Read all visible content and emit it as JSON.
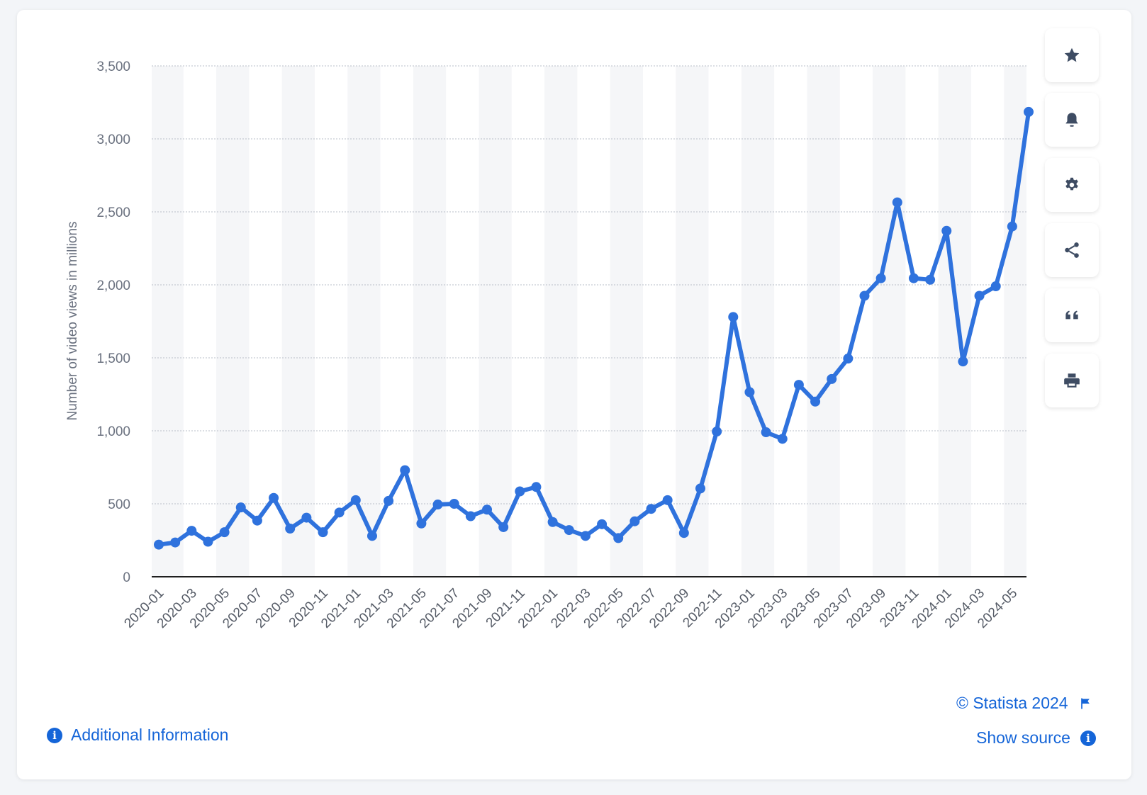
{
  "chart_data": {
    "type": "line",
    "ylabel": "Number of video views in millions",
    "xlabel": "",
    "ylim": [
      0,
      3500
    ],
    "yticks": [
      0,
      500,
      1000,
      1500,
      2000,
      2500,
      3000,
      3500
    ],
    "ytick_labels": [
      "0",
      "500",
      "1,000",
      "1,500",
      "2,000",
      "2,500",
      "3,000",
      "3,500"
    ],
    "xtick_labels": [
      "2020-01",
      "2020-03",
      "2020-05",
      "2020-07",
      "2020-09",
      "2020-11",
      "2021-01",
      "2021-03",
      "2021-05",
      "2021-07",
      "2021-09",
      "2021-11",
      "2022-01",
      "2022-03",
      "2022-05",
      "2022-07",
      "2022-09",
      "2022-11",
      "2023-01",
      "2023-03",
      "2023-05",
      "2023-07",
      "2023-09",
      "2023-11",
      "2024-01",
      "2024-03",
      "2024-05"
    ],
    "grid": true,
    "series": [
      {
        "color": "#2f72dd",
        "points": [
          [
            "2020-01",
            220
          ],
          [
            "2020-02",
            235
          ],
          [
            "2020-03",
            315
          ],
          [
            "2020-04",
            240
          ],
          [
            "2020-05",
            305
          ],
          [
            "2020-06",
            475
          ],
          [
            "2020-07",
            385
          ],
          [
            "2020-08",
            540
          ],
          [
            "2020-09",
            330
          ],
          [
            "2020-10",
            405
          ],
          [
            "2020-11",
            305
          ],
          [
            "2020-12",
            440
          ],
          [
            "2021-01",
            525
          ],
          [
            "2021-02",
            280
          ],
          [
            "2021-03",
            520
          ],
          [
            "2021-04",
            730
          ],
          [
            "2021-05",
            365
          ],
          [
            "2021-06",
            495
          ],
          [
            "2021-07",
            500
          ],
          [
            "2021-08",
            415
          ],
          [
            "2021-09",
            460
          ],
          [
            "2021-10",
            340
          ],
          [
            "2021-11",
            585
          ],
          [
            "2021-12",
            615
          ],
          [
            "2022-01",
            375
          ],
          [
            "2022-02",
            320
          ],
          [
            "2022-03",
            280
          ],
          [
            "2022-04",
            360
          ],
          [
            "2022-05",
            265
          ],
          [
            "2022-06",
            380
          ],
          [
            "2022-07",
            465
          ],
          [
            "2022-08",
            525
          ],
          [
            "2022-09",
            300
          ],
          [
            "2022-10",
            605
          ],
          [
            "2022-11",
            995
          ],
          [
            "2022-12",
            1780
          ],
          [
            "2023-01",
            1265
          ],
          [
            "2023-02",
            990
          ],
          [
            "2023-03",
            945
          ],
          [
            "2023-04",
            1315
          ],
          [
            "2023-05",
            1200
          ],
          [
            "2023-06",
            1355
          ],
          [
            "2023-07",
            1495
          ],
          [
            "2023-08",
            1925
          ],
          [
            "2023-09",
            2045
          ],
          [
            "2023-10",
            2565
          ],
          [
            "2023-11",
            2045
          ],
          [
            "2023-12",
            2035
          ],
          [
            "2024-01",
            2370
          ],
          [
            "2024-02",
            1475
          ],
          [
            "2024-03",
            1925
          ],
          [
            "2024-04",
            1990
          ],
          [
            "2024-05",
            2400
          ],
          [
            "2024-06",
            3185
          ]
        ]
      }
    ]
  },
  "sidebar": {
    "buttons": [
      {
        "icon": "star-icon",
        "name": "favorite-button"
      },
      {
        "icon": "bell-icon",
        "name": "notification-button"
      },
      {
        "icon": "gear-icon",
        "name": "settings-button"
      },
      {
        "icon": "share-icon",
        "name": "share-button"
      },
      {
        "icon": "quote-icon",
        "name": "cite-button"
      },
      {
        "icon": "print-icon",
        "name": "print-button"
      }
    ],
    "icon_color": "#3e4c63"
  },
  "footer": {
    "copyright": "© Statista 2024",
    "show_source": "Show source",
    "additional_info": "Additional Information",
    "link_color": "#1565d8"
  }
}
